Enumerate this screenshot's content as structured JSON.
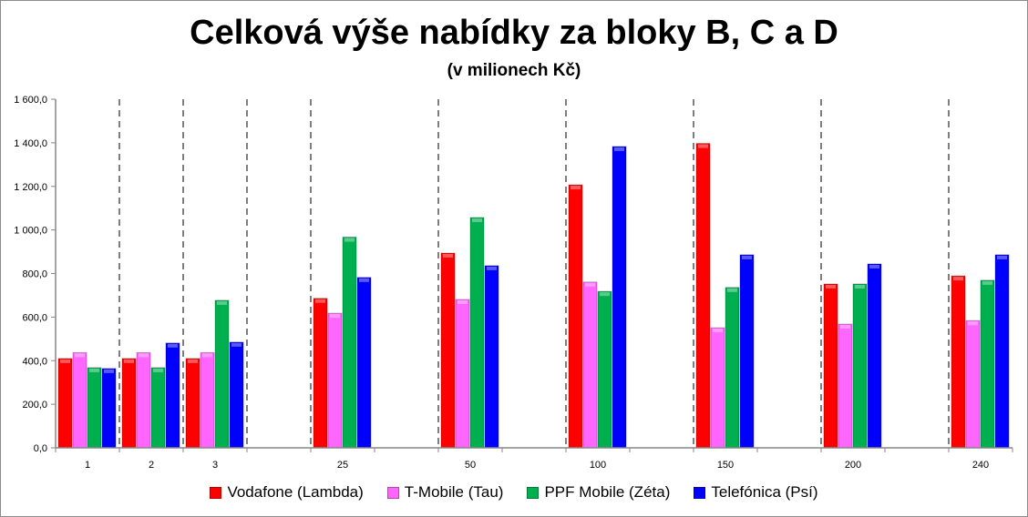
{
  "chart_data": {
    "type": "bar",
    "title": "Celková výše nabídky za bloky B, C a D",
    "subtitle": "(v milionech Kč)",
    "xlabel": "",
    "ylabel": "",
    "ylim": [
      0,
      1600
    ],
    "y_ticks": [
      "0,0",
      "200,0",
      "400,0",
      "600,0",
      "800,0",
      "1 000,0",
      "1 200,0",
      "1 400,0",
      "1 600,0"
    ],
    "categories": [
      "1",
      "2",
      "3",
      "",
      "25",
      "",
      "50",
      "",
      "100",
      "",
      "150",
      "",
      "200",
      "",
      "240"
    ],
    "legend_position": "bottom",
    "series": [
      {
        "name": "Vodafone (Lambda)",
        "color": "#ff0000",
        "values": [
          410,
          410,
          410,
          null,
          686,
          null,
          894,
          null,
          1207,
          null,
          1397,
          null,
          752,
          null,
          789
        ]
      },
      {
        "name": "T-Mobile (Tau)",
        "color": "#ff66ff",
        "values": [
          437,
          437,
          437,
          null,
          618,
          null,
          681,
          null,
          761,
          null,
          551,
          null,
          568,
          null,
          584
        ]
      },
      {
        "name": "PPF Mobile (Zéta)",
        "color": "#00b050",
        "values": [
          368,
          368,
          677,
          null,
          967,
          null,
          1057,
          null,
          718,
          null,
          736,
          null,
          752,
          null,
          769
        ]
      },
      {
        "name": "Telefónica (Psí)",
        "color": "#0000ff",
        "values": [
          364,
          481,
          485,
          null,
          782,
          null,
          836,
          null,
          1383,
          null,
          886,
          null,
          844,
          null,
          886
        ]
      }
    ]
  }
}
